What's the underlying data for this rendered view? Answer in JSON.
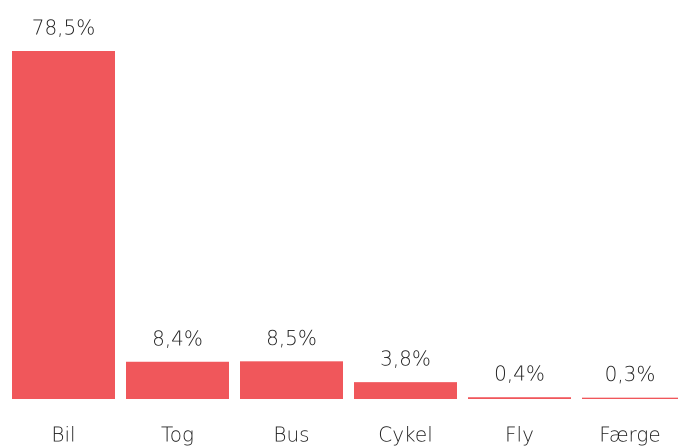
{
  "chart_data": {
    "type": "bar",
    "categories": [
      "Bil",
      "Tog",
      "Bus",
      "Cykel",
      "Fly",
      "Færge"
    ],
    "values": [
      78.5,
      8.4,
      8.5,
      3.8,
      0.4,
      0.3
    ],
    "value_labels": [
      "78,5%",
      "8,4%",
      "8,5%",
      "3,8%",
      "0,4%",
      "0,3%"
    ],
    "color": "#f0575b"
  }
}
